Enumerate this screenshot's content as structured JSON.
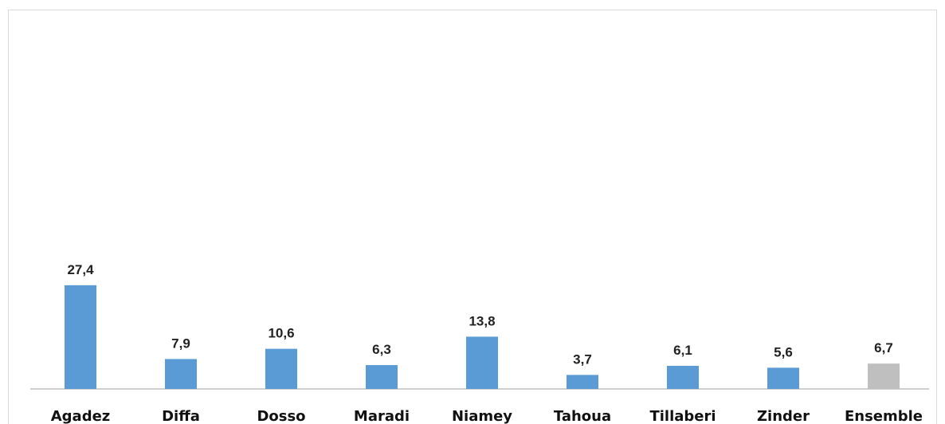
{
  "chart_data": {
    "type": "bar",
    "categories": [
      "Agadez",
      "Diffa",
      "Dosso",
      "Maradi",
      "Niamey",
      "Tahoua",
      "Tillaberi",
      "Zinder",
      "Ensemble"
    ],
    "values": [
      27.4,
      7.9,
      10.6,
      6.3,
      13.8,
      3.7,
      6.1,
      5.6,
      6.7
    ],
    "value_labels": [
      "27,4",
      "7,9",
      "10,6",
      "6,3",
      "13,8",
      "3,7",
      "6,1",
      "5,6",
      "6,7"
    ],
    "title": "",
    "xlabel": "",
    "ylabel": "",
    "ylim": [
      0,
      100
    ],
    "grid": false,
    "legend": "none",
    "colors": {
      "bar": "#5b9bd5",
      "highlight_bar": "#bfbfbf",
      "axis": "#bfbfbf"
    },
    "highlight_category": "Ensemble"
  }
}
